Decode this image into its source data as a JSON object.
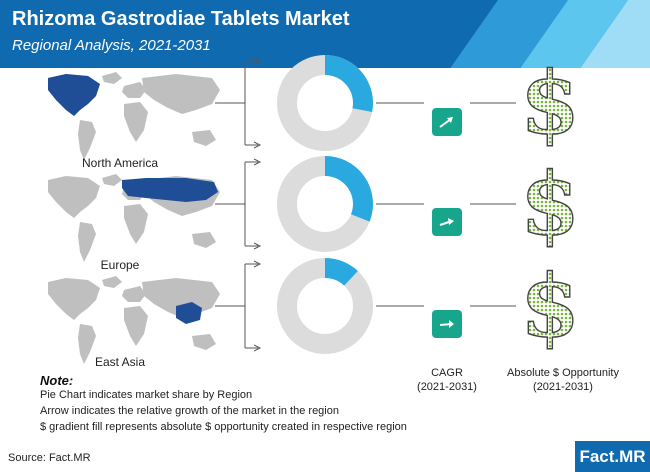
{
  "header": {
    "title": "Rhizoma Gastrodiae Tablets Market",
    "subtitle": "Regional Analysis, 2021-2031",
    "colors": {
      "primary": "#0f6ab0",
      "accent_light": "#5cc6ef",
      "cagr_green": "#17a58c",
      "donut_share": "#2aa8e0",
      "donut_rest": "#dcdcdc",
      "dollar_dots": "#7cb342"
    }
  },
  "chart_data": {
    "type": "pie",
    "variant": "donut",
    "categories": [
      "North America",
      "Europe",
      "East Asia"
    ],
    "series": [
      {
        "values": [
          0.28,
          0.31,
          0.12
        ]
      }
    ],
    "dollar_fill": [
      0.55,
      0.55,
      0.55
    ],
    "captions": {
      "cagr": "CAGR",
      "cagr_period": "(2021-2031)",
      "opportunity": "Absolute $ Opportunity",
      "opportunity_period": "(2021-2031)"
    }
  },
  "notes": {
    "title": "Note:",
    "lines": [
      "Pie Chart indicates market share by Region",
      "Arrow indicates the relative growth of the market in the region",
      "$ gradient fill represents absolute $ opportunity created in respective region"
    ]
  },
  "footer": {
    "source": "Source: Fact.MR",
    "brand": "Fact.MR"
  }
}
